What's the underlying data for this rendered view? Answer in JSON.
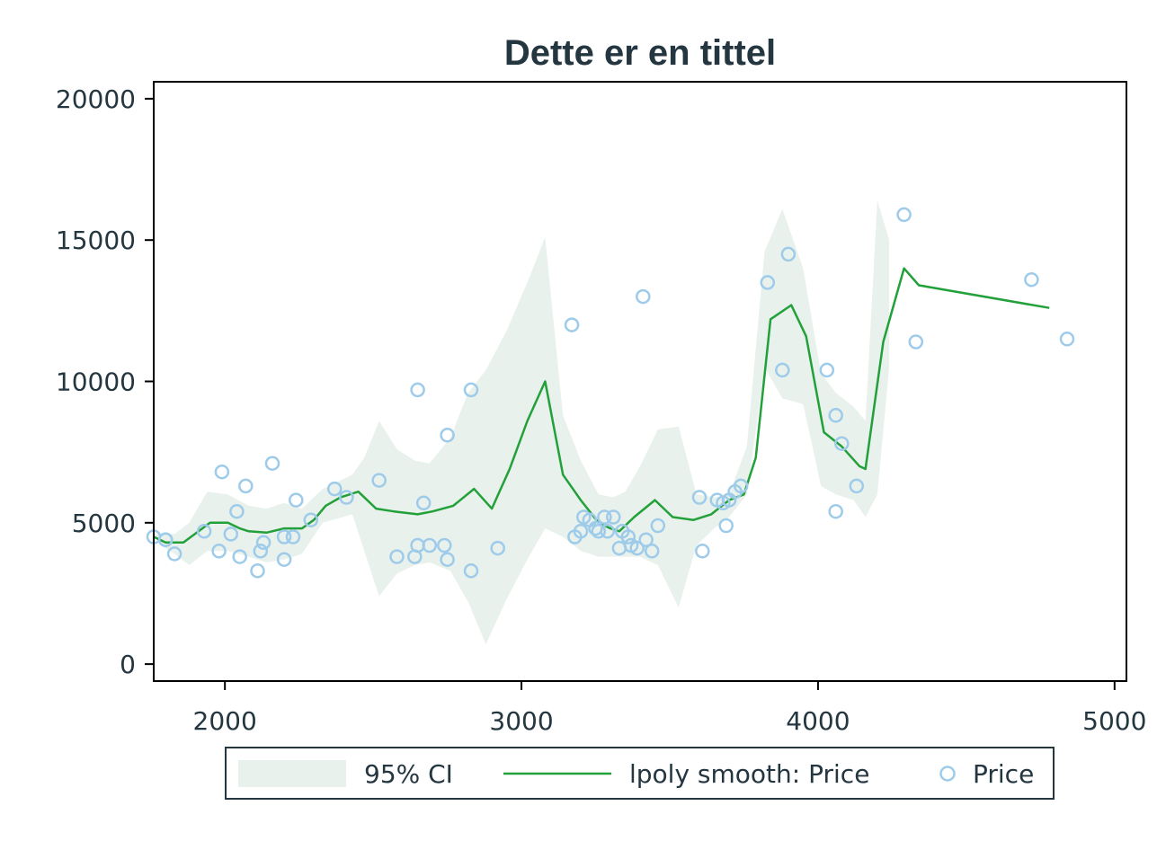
{
  "chart_data": {
    "type": "line",
    "title": "Dette er en tittel",
    "xlabel": "",
    "ylabel": "",
    "xlim": [
      1760,
      5040
    ],
    "ylim": [
      -600,
      20600
    ],
    "x_ticks": [
      2000,
      3000,
      4000,
      5000
    ],
    "y_ticks": [
      0,
      5000,
      10000,
      15000,
      20000
    ],
    "grid": false,
    "legend_position": "bottom",
    "colors": {
      "ci_fill": "#e9f1ec",
      "smooth_line": "#22a03a",
      "points": "#9ecbea",
      "axis": "#000000",
      "text": "#243640",
      "legend_border": "#243640"
    },
    "series": [
      {
        "name": "95% CI",
        "kind": "band",
        "x": [
          1760,
          1800,
          1830,
          1880,
          1940,
          2010,
          2080,
          2140,
          2200,
          2260,
          2330,
          2430,
          2470,
          2520,
          2580,
          2640,
          2690,
          2760,
          2820,
          2880,
          2950,
          3020,
          3080,
          3140,
          3200,
          3260,
          3310,
          3350,
          3400,
          3460,
          3530,
          3590,
          3650,
          3700,
          3760,
          3820,
          3880,
          3950,
          4010,
          4060,
          4120,
          4160,
          4200,
          4240
        ],
        "lower": [
          4600,
          4100,
          3900,
          3500,
          4000,
          4000,
          3800,
          3600,
          3700,
          3900,
          5000,
          5300,
          4000,
          2400,
          3200,
          3500,
          3600,
          3300,
          2200,
          700,
          2300,
          3700,
          4800,
          4500,
          4000,
          3800,
          3800,
          3800,
          3800,
          3500,
          2000,
          4200,
          4800,
          5200,
          6000,
          10500,
          9400,
          9200,
          6300,
          6000,
          5800,
          5200,
          6000,
          10500
        ],
        "upper": [
          4600,
          4600,
          4600,
          5000,
          6100,
          6000,
          5600,
          5500,
          5700,
          5500,
          6200,
          6700,
          7300,
          8600,
          7600,
          7200,
          7100,
          8000,
          9600,
          10400,
          11800,
          13500,
          15100,
          8800,
          7200,
          6000,
          5900,
          6100,
          7000,
          8300,
          8400,
          6000,
          5900,
          6000,
          7700,
          14600,
          16100,
          14000,
          10300,
          9600,
          9100,
          8600,
          16400,
          15000
        ]
      },
      {
        "name": "lpoly smooth: Price",
        "kind": "line",
        "x": [
          1760,
          1800,
          1860,
          1950,
          2010,
          2050,
          2080,
          2140,
          2200,
          2260,
          2300,
          2340,
          2390,
          2450,
          2510,
          2570,
          2650,
          2700,
          2770,
          2840,
          2900,
          2960,
          3020,
          3080,
          3140,
          3200,
          3260,
          3300,
          3330,
          3380,
          3450,
          3510,
          3580,
          3640,
          3700,
          3750,
          3790,
          3840,
          3910,
          3960,
          4020,
          4080,
          4140,
          4160,
          4220,
          4290,
          4340,
          4780
        ],
        "y": [
          4500,
          4300,
          4300,
          5000,
          5000,
          4800,
          4700,
          4650,
          4800,
          4800,
          5100,
          5600,
          5900,
          6100,
          5500,
          5400,
          5300,
          5400,
          5600,
          6200,
          5500,
          6900,
          8600,
          10000,
          6700,
          5800,
          5000,
          4800,
          4700,
          5200,
          5800,
          5200,
          5100,
          5300,
          5800,
          6000,
          7300,
          12200,
          12700,
          11600,
          8200,
          7700,
          7000,
          6900,
          11400,
          14000,
          13400,
          12600
        ]
      },
      {
        "name": "Price",
        "kind": "scatter",
        "x": [
          1760,
          1800,
          1800,
          1830,
          1930,
          1980,
          1990,
          2020,
          2040,
          2050,
          2070,
          2110,
          2120,
          2130,
          2160,
          2200,
          2200,
          2230,
          2240,
          2290,
          2370,
          2410,
          2520,
          2580,
          2640,
          2650,
          2650,
          2670,
          2690,
          2740,
          2750,
          2750,
          2830,
          2830,
          2920,
          3170,
          3180,
          3200,
          3210,
          3230,
          3250,
          3260,
          3280,
          3290,
          3310,
          3330,
          3340,
          3360,
          3370,
          3390,
          3410,
          3420,
          3440,
          3460,
          3600,
          3610,
          3660,
          3680,
          3690,
          3700,
          3700,
          3720,
          3740,
          3830,
          3880,
          3900,
          4030,
          4060,
          4060,
          4080,
          4130,
          4290,
          4330,
          4720,
          4840
        ],
        "y": [
          4500,
          4400,
          4400,
          3900,
          4700,
          4000,
          6800,
          4600,
          5400,
          3800,
          6300,
          3300,
          4000,
          4300,
          7100,
          3700,
          4500,
          4500,
          5800,
          5100,
          6200,
          5900,
          6500,
          3800,
          3800,
          9700,
          4200,
          5700,
          4200,
          4200,
          3700,
          8100,
          9700,
          3300,
          4100,
          12000,
          4500,
          4700,
          5200,
          5100,
          4800,
          4700,
          5200,
          4700,
          5200,
          4100,
          4700,
          4500,
          4200,
          4100,
          13000,
          4400,
          4000,
          4900,
          5900,
          4000,
          5800,
          5700,
          4900,
          5800,
          5800,
          6100,
          6300,
          13500,
          10400,
          14500,
          10400,
          5400,
          8800,
          7800,
          6300,
          15900,
          11400,
          13600,
          11500
        ]
      }
    ]
  }
}
